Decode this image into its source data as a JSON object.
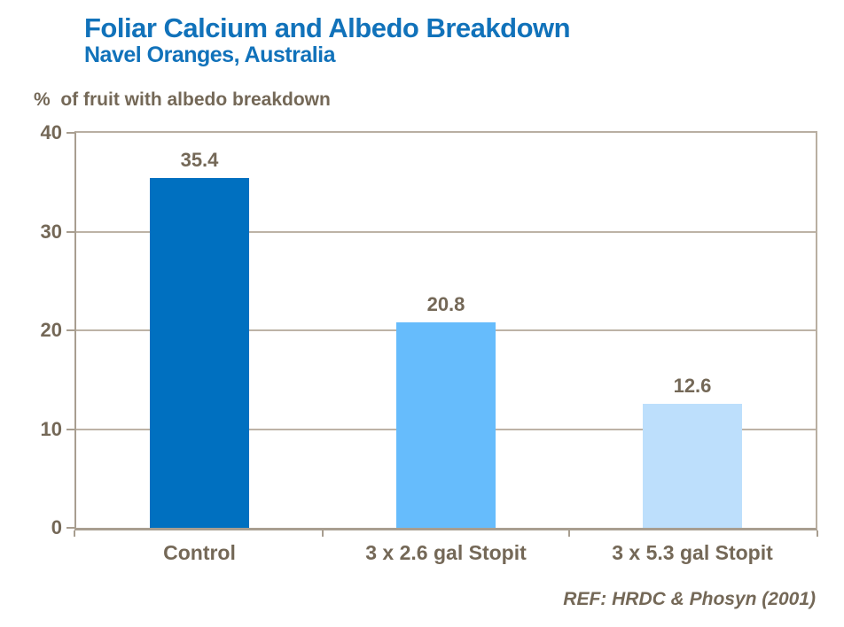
{
  "header": {
    "title": "Foliar Calcium and Albedo Breakdown",
    "subtitle": "Navel Oranges, Australia"
  },
  "footer": {
    "reference": "REF: HRDC & Phosyn (2001)"
  },
  "colors": {
    "title_blue": "#1172BA",
    "axis_text": "#746857",
    "gridline": "#BDB3A6",
    "axis_line": "#A89E90",
    "plot_border": "#B9AFA2"
  },
  "chart_data": {
    "type": "bar",
    "title": "Foliar Calcium and Albedo Breakdown",
    "subtitle": "Navel Oranges, Australia",
    "ylabel": "%  of fruit with albedo breakdown",
    "xlabel": "",
    "categories": [
      "Control",
      "3 x 2.6 gal Stopit",
      "3 x 5.3 gal Stopit"
    ],
    "values": [
      35.4,
      20.8,
      12.6
    ],
    "value_labels": [
      "35.4",
      "20.8",
      "12.6"
    ],
    "ylim": [
      0,
      40
    ],
    "yticks": [
      0,
      10,
      20,
      30,
      40
    ],
    "grid": true,
    "legend": "none",
    "bar_colors": [
      "#0070C0",
      "#66BCFC",
      "#BDDFFC"
    ],
    "source": "REF: HRDC & Phosyn (2001)"
  }
}
